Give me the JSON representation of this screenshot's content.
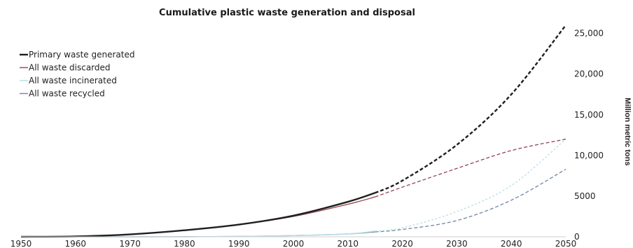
{
  "chart_data": {
    "type": "line",
    "title": "Cumulative plastic waste generation and disposal",
    "xlabel": "",
    "ylabel": "Million metric tons",
    "xlim": [
      1950,
      2050
    ],
    "ylim": [
      0,
      26000
    ],
    "x_ticks": [
      1950,
      1960,
      1970,
      1980,
      1990,
      2000,
      2010,
      2020,
      2030,
      2040,
      2050
    ],
    "y_ticks": [
      {
        "value": 0,
        "label": "0"
      },
      {
        "value": 5000,
        "label": "5000"
      },
      {
        "value": 10000,
        "label": "10,000"
      },
      {
        "value": 15000,
        "label": "15,000"
      },
      {
        "value": 20000,
        "label": "20,000"
      },
      {
        "value": 25000,
        "label": "25,000"
      }
    ],
    "projection_start": 2015,
    "legend_position": "top-left",
    "grid": false,
    "series": [
      {
        "name": "Primary waste generated",
        "color": "#1f1f1f",
        "x": [
          1950,
          1960,
          1970,
          1980,
          1990,
          2000,
          2010,
          2015,
          2020,
          2030,
          2040,
          2050
        ],
        "y": [
          0,
          50,
          300,
          800,
          1500,
          2600,
          4300,
          5400,
          6900,
          11300,
          17500,
          26000
        ]
      },
      {
        "name": "All waste discarded",
        "color": "#9a4f5c",
        "x": [
          1950,
          1960,
          1970,
          1980,
          1990,
          2000,
          2010,
          2015,
          2020,
          2030,
          2040,
          2050
        ],
        "y": [
          0,
          50,
          300,
          800,
          1500,
          2500,
          4000,
          4900,
          6100,
          8400,
          10600,
          12000
        ]
      },
      {
        "name": "All waste incinerated",
        "color": "#b8dde6",
        "x": [
          1950,
          1970,
          1980,
          1990,
          2000,
          2010,
          2015,
          2020,
          2030,
          2040,
          2050
        ],
        "y": [
          0,
          0,
          5,
          50,
          150,
          350,
          700,
          1100,
          3100,
          6300,
          12000
        ]
      },
      {
        "name": "All waste recycled",
        "color": "#7a8ca8",
        "x": [
          1950,
          1970,
          1980,
          1990,
          2000,
          2010,
          2015,
          2020,
          2030,
          2040,
          2050
        ],
        "y": [
          0,
          0,
          10,
          50,
          150,
          350,
          600,
          900,
          2000,
          4500,
          8300
        ]
      }
    ]
  }
}
